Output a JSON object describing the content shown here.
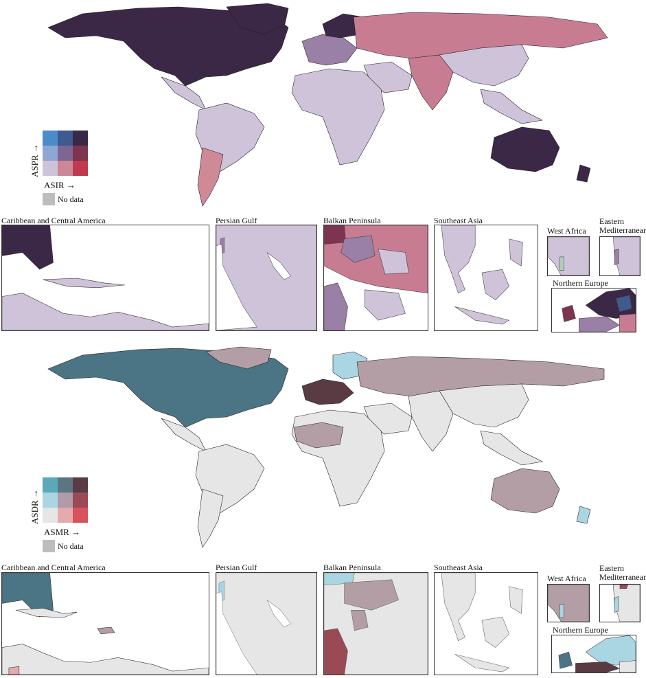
{
  "panels": [
    {
      "id": "incidence-prevalence",
      "legend": {
        "y_axis_label": "ASPR →",
        "x_axis_label": "ASIR →",
        "no_data_label": "No data",
        "colors": [
          [
            "#4a8cc9",
            "#3f5a8f",
            "#3b2746"
          ],
          [
            "#8ea6d4",
            "#7f6592",
            "#7d3451"
          ],
          [
            "#cfc3da",
            "#cc8797",
            "#c0394f"
          ]
        ]
      },
      "region_colors": {
        "north_america": "#3b2746",
        "greenland": "#3b2746",
        "russia_asia": "#c87c91",
        "china_east": "#cfc3da",
        "south_asia": "#c87c91",
        "europe": "#9a7fa6",
        "scandinavia": "#3b2746",
        "africa": "#cfc3da",
        "south_america": "#cfc3da",
        "argentina": "#cf8a98",
        "australia": "#3b2746",
        "new_zealand": "#3b2746",
        "middle_east": "#cfc3da"
      },
      "insets": [
        {
          "title": "Caribbean and Central America"
        },
        {
          "title": "Persian Gulf"
        },
        {
          "title": "Balkan Peninsula"
        },
        {
          "title": "Southeast Asia"
        },
        {
          "title": "West  Africa"
        },
        {
          "title": "Eastern\nMediterranean"
        },
        {
          "title": "Northern Europe"
        }
      ]
    },
    {
      "id": "death-mortality",
      "legend": {
        "y_axis_label": "ASDR →",
        "x_axis_label": "ASMR →",
        "no_data_label": "No data",
        "colors": [
          [
            "#5ba9b8",
            "#5b7681",
            "#5a3b44"
          ],
          [
            "#a9d6e2",
            "#b09ba6",
            "#9a4a55"
          ],
          [
            "#e6e6e6",
            "#e5aaad",
            "#d8525c"
          ]
        ]
      },
      "region_colors": {
        "north_america": "#4b7484",
        "greenland": "#b29ea4",
        "russia_asia": "#b29ea4",
        "china_east": "#e6e6e6",
        "south_asia": "#e6e6e6",
        "europe": "#5a3b44",
        "scandinavia": "#a9d6e2",
        "africa": "#e6e6e6",
        "west_africa": "#b29ea4",
        "south_america": "#e6e6e6",
        "argentina": "#e6e6e6",
        "australia": "#b29ea4",
        "new_zealand": "#a9d6e2",
        "middle_east": "#e6e6e6"
      },
      "insets": [
        {
          "title": "Caribbean and Central America"
        },
        {
          "title": "Persian Gulf"
        },
        {
          "title": "Balkan Peninsula"
        },
        {
          "title": "Southeast Asia"
        },
        {
          "title": "West  Africa"
        },
        {
          "title": "Eastern\nMediterranean"
        },
        {
          "title": "Northern Europe"
        }
      ]
    }
  ]
}
